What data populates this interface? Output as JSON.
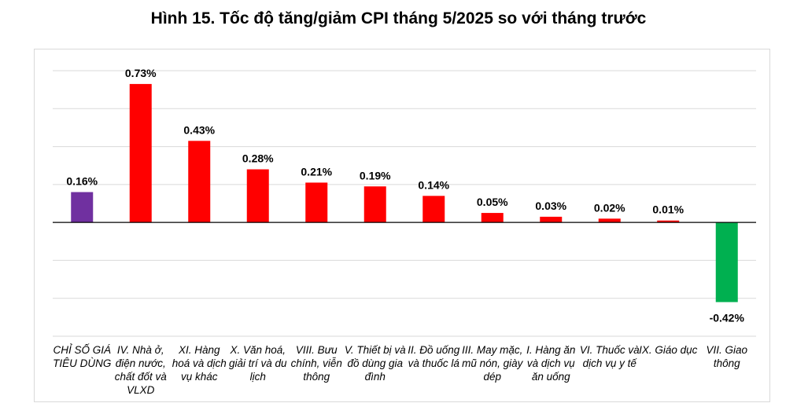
{
  "title": "Hình 15. Tốc độ tăng/giảm CPI tháng 5/2025 so với tháng trước",
  "chart_data": {
    "type": "bar",
    "title": "Hình 15. Tốc độ tăng/giảm CPI tháng 5/2025 so với tháng trước",
    "xlabel": "",
    "ylabel": "",
    "ylim": [
      -0.6,
      0.8
    ],
    "grid": true,
    "categories": [
      "CHỈ SỐ GIÁ TIÊU DÙNG",
      "IV. Nhà ở, điện nước, chất đốt và VLXD",
      "XI. Hàng hoá và dịch vụ khác",
      "X. Văn hoá, giải trí và du lịch",
      "VIII. Bưu chính, viễn thông",
      "V. Thiết bị và đồ dùng gia đình",
      "II. Đồ uống và thuốc lá",
      "III. May mặc, mũ nón, giày dép",
      "I. Hàng ăn và dịch vụ ăn uống",
      "VI. Thuốc và dịch vụ y tế",
      "IX. Giáo dục",
      "VII. Giao thông"
    ],
    "values": [
      0.16,
      0.73,
      0.43,
      0.28,
      0.21,
      0.19,
      0.14,
      0.05,
      0.03,
      0.02,
      0.01,
      -0.42
    ],
    "labels": [
      "0.16%",
      "0.73%",
      "0.43%",
      "0.28%",
      "0.21%",
      "0.19%",
      "0.14%",
      "0.05%",
      "0.03%",
      "0.02%",
      "0.01%",
      "-0.42%"
    ],
    "colors": {
      "index": "#7030a0",
      "positive": "#ff0000",
      "negative": "#00b050",
      "grid": "#d9d9d9",
      "axis": "#000000"
    }
  }
}
